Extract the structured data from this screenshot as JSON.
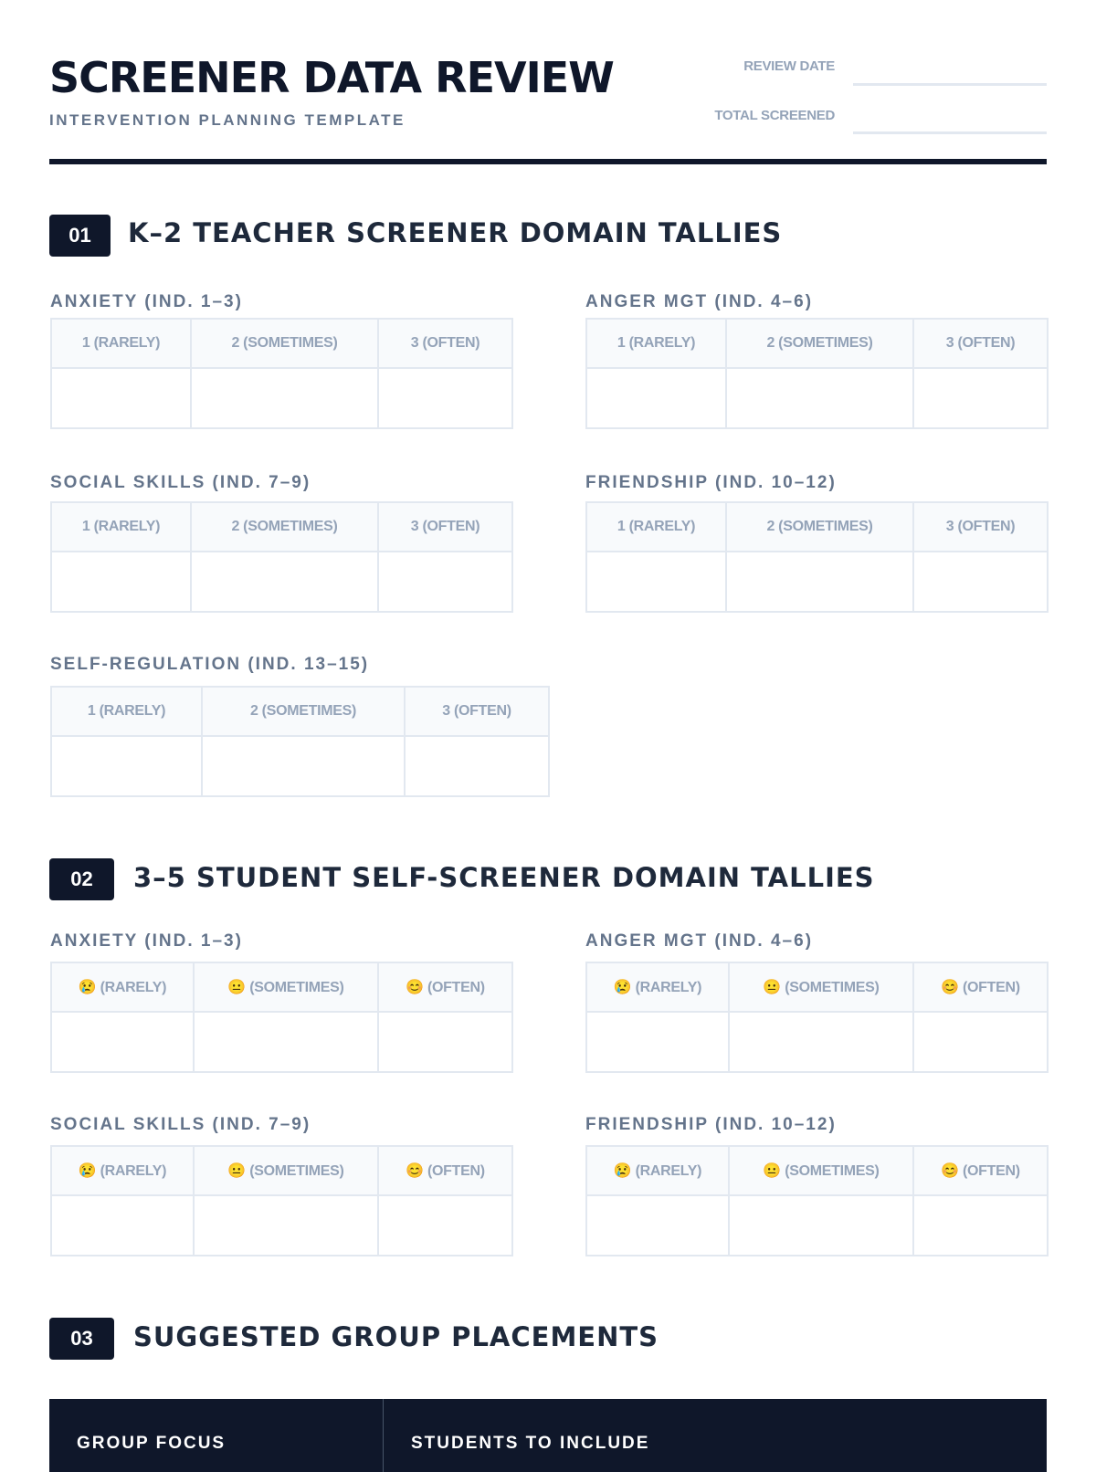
{
  "header": {
    "title": "SCREENER DATA REVIEW",
    "subtitle": "INTERVENTION PLANNING TEMPLATE",
    "review_date_label": "REVIEW DATE",
    "total_screened_label": "TOTAL SCREENED"
  },
  "sections": [
    {
      "number": "01",
      "title": "K–2 TEACHER SCREENER DOMAIN TALLIES",
      "columns": [
        "1 (RARELY)",
        "2 (SOMETIMES)",
        "3 (OFTEN)"
      ],
      "domains": [
        "ANXIETY (IND. 1–3)",
        "ANGER MGT (IND. 4–6)",
        "SOCIAL SKILLS (IND. 7–9)",
        "FRIENDSHIP (IND. 10–12)",
        "SELF-REGULATION (IND. 13–15)"
      ]
    },
    {
      "number": "02",
      "title": "3–5 STUDENT SELF-SCREENER DOMAIN TALLIES",
      "columns": [
        "😢 (RARELY)",
        "😐 (SOMETIMES)",
        "😊 (OFTEN)"
      ],
      "domains": [
        "ANXIETY (IND. 1–3)",
        "ANGER MGT (IND. 4–6)",
        "SOCIAL SKILLS (IND. 7–9)",
        "FRIENDSHIP (IND. 10–12)"
      ]
    },
    {
      "number": "03",
      "title": "SUGGESTED GROUP PLACEMENTS",
      "columns": [
        "GROUP FOCUS",
        "STUDENTS TO INCLUDE"
      ]
    }
  ]
}
